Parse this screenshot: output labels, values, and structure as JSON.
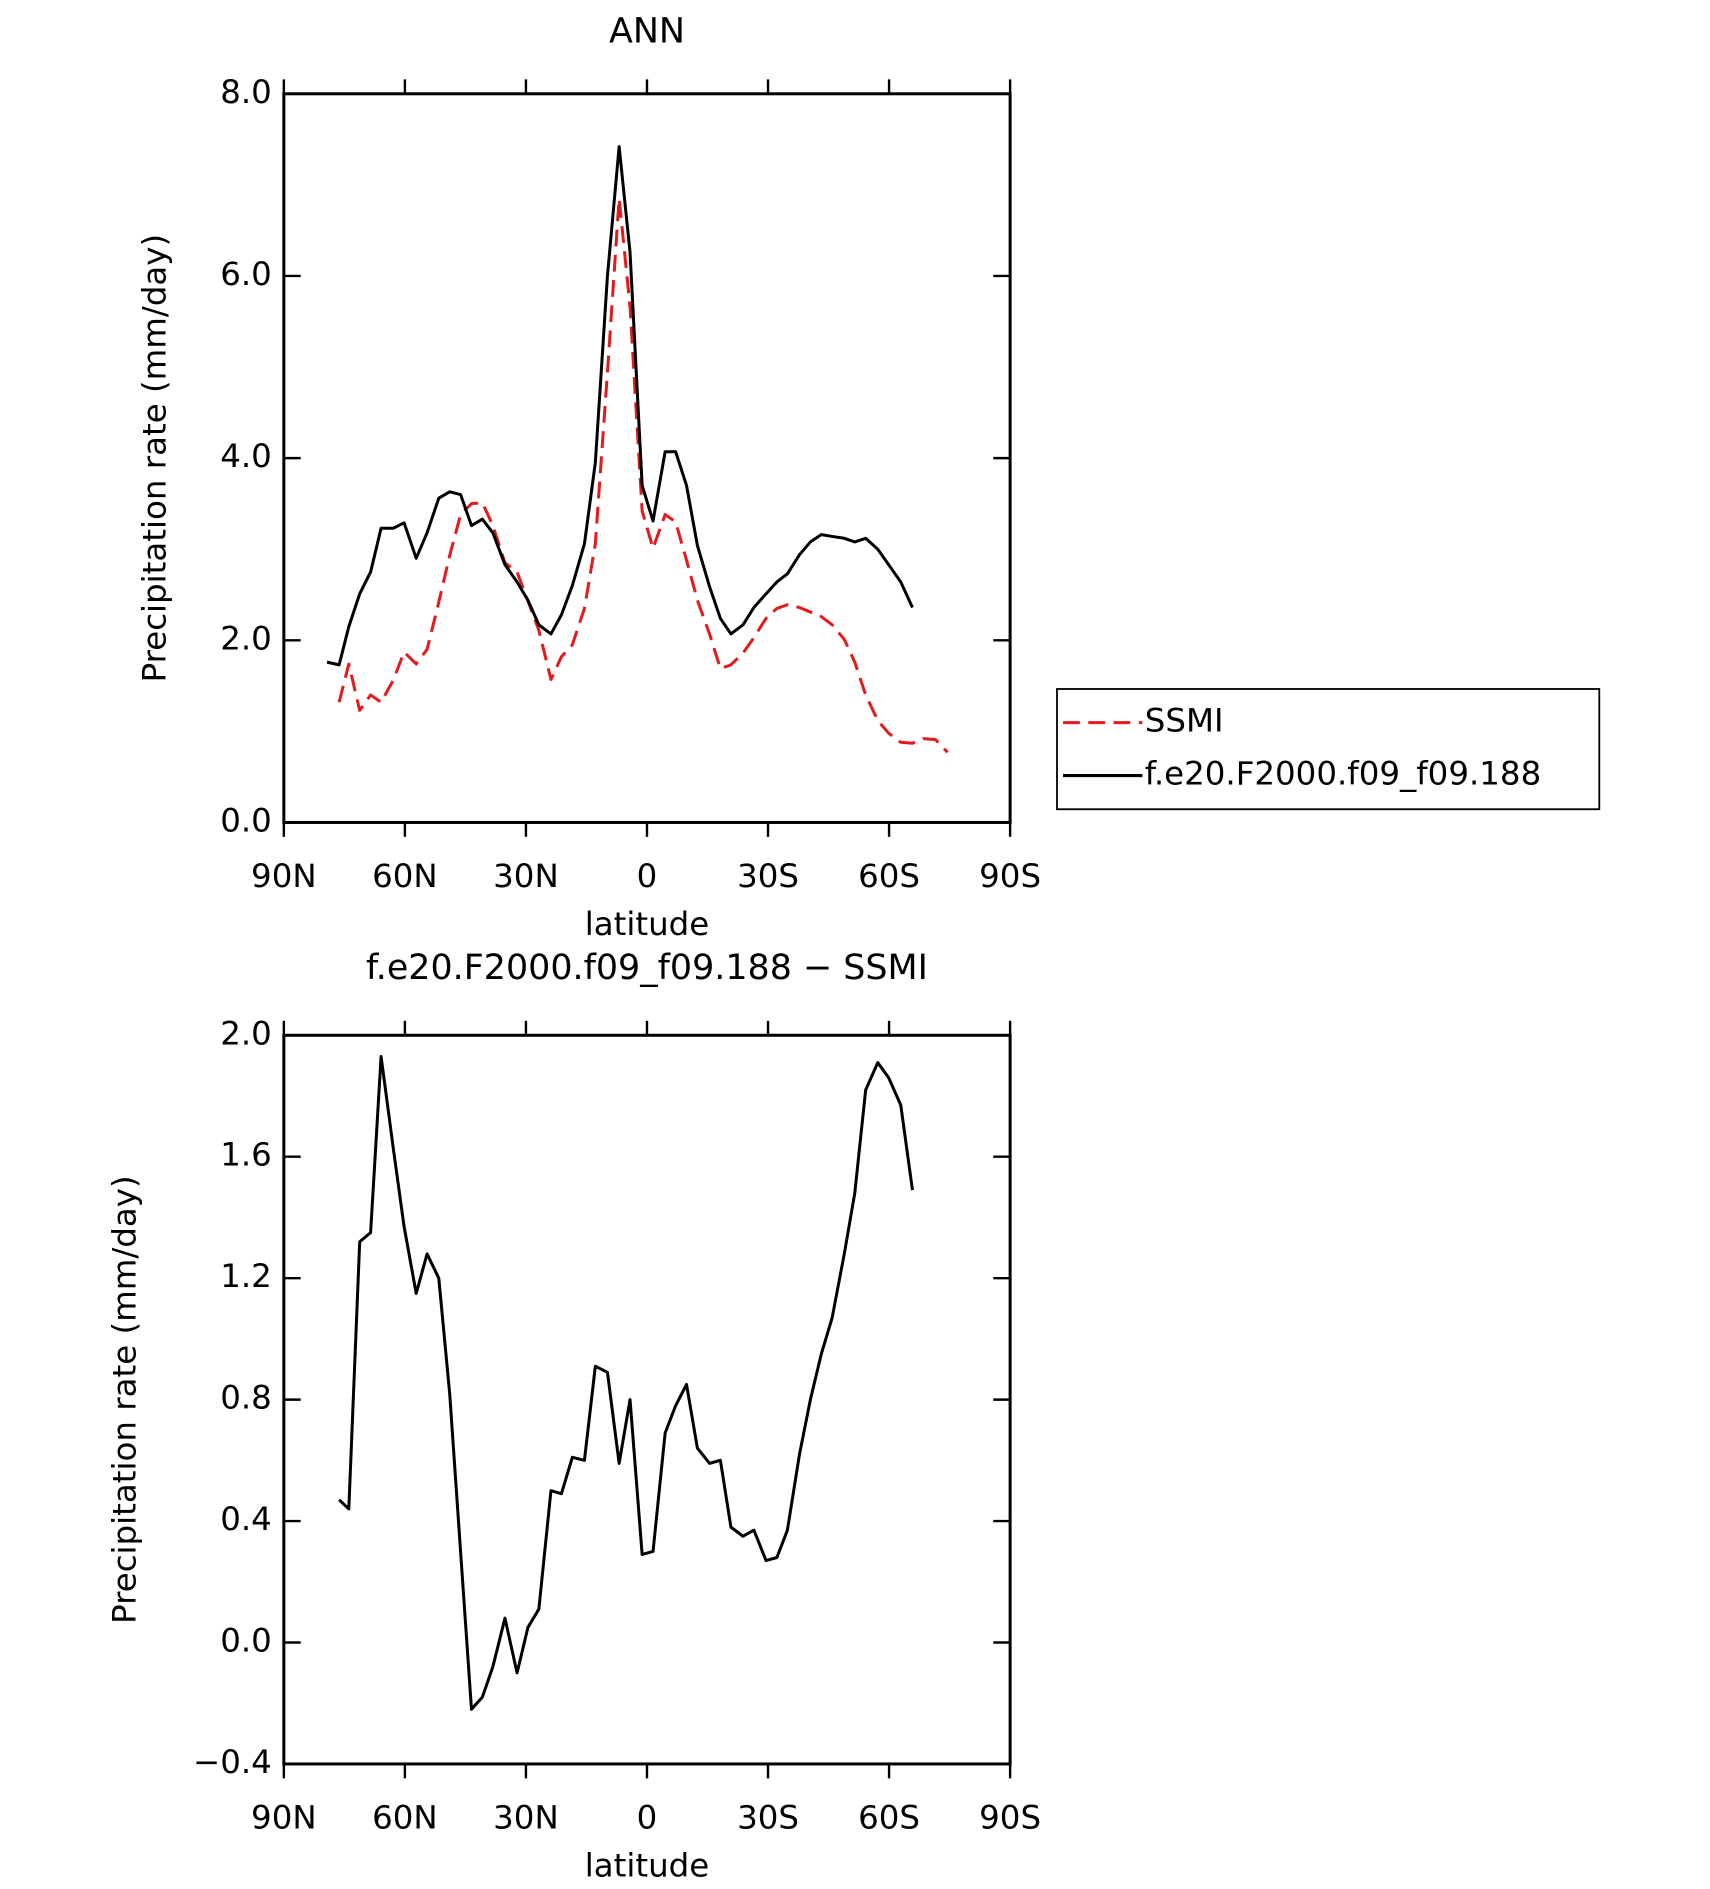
{
  "chart_data": [
    {
      "type": "line",
      "title": "ANN",
      "xlabel": "latitude",
      "ylabel": "Precipitation rate (mm/day)",
      "x": [
        79.3,
        76.3,
        73.9,
        71.2,
        68.5,
        65.9,
        62.9,
        60.2,
        57.2,
        54.5,
        51.6,
        48.9,
        46.2,
        43.5,
        40.8,
        38.2,
        35.2,
        32.2,
        29.5,
        26.8,
        23.8,
        21.2,
        18.5,
        15.5,
        12.8,
        9.8,
        6.9,
        4.2,
        1.2,
        -1.5,
        -4.5,
        -7.1,
        -9.8,
        -12.5,
        -15.5,
        -18.2,
        -20.8,
        -23.8,
        -26.5,
        -29.5,
        -32.2,
        -34.8,
        -37.8,
        -40.5,
        -43.2,
        -45.9,
        -48.9,
        -51.5,
        -54.2,
        -57.2,
        -59.9,
        -62.9,
        -65.8,
        -68.5,
        -71.5,
        -74.5
      ],
      "series": [
        {
          "name": "SSMI",
          "color": "#e41a1c",
          "dashed": true,
          "values": [
            null,
            1.32,
            1.74,
            1.23,
            1.4,
            1.32,
            1.56,
            1.87,
            1.74,
            1.9,
            2.42,
            2.93,
            3.38,
            3.5,
            3.51,
            3.26,
            2.85,
            2.75,
            2.43,
            2.11,
            1.57,
            1.82,
            1.95,
            2.35,
            3.06,
            4.94,
            6.85,
            5.66,
            3.42,
            3.01,
            3.38,
            3.3,
            2.88,
            2.44,
            2.07,
            1.69,
            1.73,
            1.86,
            2.03,
            2.24,
            2.35,
            2.39,
            2.36,
            2.31,
            2.26,
            2.17,
            2.01,
            1.76,
            1.4,
            1.12,
            0.98,
            0.88,
            0.87,
            0.92,
            0.91,
            0.77
          ]
        },
        {
          "name": "f.e20.F2000.f09_f09.188",
          "color": "#000000",
          "dashed": false,
          "values": [
            1.76,
            1.73,
            2.15,
            2.51,
            2.75,
            3.23,
            3.23,
            3.29,
            2.9,
            3.18,
            3.56,
            3.63,
            3.6,
            3.26,
            3.33,
            3.18,
            2.83,
            2.64,
            2.44,
            2.17,
            2.07,
            2.28,
            2.6,
            3.06,
            3.95,
            6.0,
            7.42,
            6.26,
            3.7,
            3.31,
            4.07,
            4.07,
            3.7,
            3.04,
            2.59,
            2.24,
            2.07,
            2.17,
            2.36,
            2.51,
            2.64,
            2.73,
            2.94,
            3.08,
            3.16,
            3.14,
            3.12,
            3.08,
            3.12,
            3.0,
            2.83,
            2.64,
            2.36,
            null,
            null,
            null
          ]
        }
      ],
      "xlim": [
        90,
        -90
      ],
      "xticks": [
        {
          "value": 90,
          "label": "90N"
        },
        {
          "value": 60,
          "label": "60N"
        },
        {
          "value": 30,
          "label": "30N"
        },
        0,
        {
          "value": -30,
          "label": "30S"
        },
        {
          "value": -60,
          "label": "60S"
        },
        {
          "value": -90,
          "label": "90S"
        }
      ],
      "ylim": [
        0,
        8
      ],
      "yticks": [
        {
          "value": 0,
          "label": "0.0"
        },
        {
          "value": 2,
          "label": "2.0"
        },
        {
          "value": 4,
          "label": "4.0"
        },
        {
          "value": 6,
          "label": "6.0"
        },
        {
          "value": 8,
          "label": "8.0"
        }
      ],
      "legend": "right"
    },
    {
      "type": "line",
      "title": "f.e20.F2000.f09_f09.188 − SSMI",
      "xlabel": "latitude",
      "ylabel": "Precipitation rate (mm/day)",
      "x": [
        76.3,
        73.9,
        71.2,
        68.5,
        65.9,
        62.9,
        60.2,
        57.2,
        54.5,
        51.6,
        48.9,
        46.2,
        43.5,
        40.8,
        38.2,
        35.2,
        32.2,
        29.5,
        26.8,
        23.8,
        21.2,
        18.5,
        15.5,
        12.8,
        9.8,
        6.9,
        4.2,
        1.2,
        -1.5,
        -4.5,
        -7.1,
        -9.8,
        -12.5,
        -15.5,
        -18.2,
        -20.8,
        -23.8,
        -26.5,
        -29.5,
        -32.2,
        -34.8,
        -37.8,
        -40.5,
        -43.2,
        -45.9,
        -48.9,
        -51.5,
        -54.2,
        -57.2,
        -59.9,
        -62.9,
        -65.8
      ],
      "series": [
        {
          "color": "#000000",
          "dashed": false,
          "values": [
            0.47,
            0.44,
            1.32,
            1.35,
            1.93,
            1.63,
            1.37,
            1.15,
            1.28,
            1.2,
            0.82,
            0.3,
            -0.22,
            -0.18,
            -0.08,
            0.08,
            -0.1,
            0.05,
            0.11,
            0.5,
            0.49,
            0.61,
            0.6,
            0.91,
            0.89,
            0.59,
            0.8,
            0.29,
            0.3,
            0.69,
            0.78,
            0.85,
            0.64,
            0.59,
            0.6,
            0.38,
            0.35,
            0.37,
            0.27,
            0.28,
            0.37,
            0.62,
            0.8,
            0.95,
            1.07,
            1.28,
            1.48,
            1.82,
            1.91,
            1.86,
            1.77,
            1.49
          ]
        }
      ],
      "xlim": [
        90,
        -90
      ],
      "xticks": [
        {
          "value": 90,
          "label": "90N"
        },
        {
          "value": 60,
          "label": "60N"
        },
        {
          "value": 30,
          "label": "30N"
        },
        0,
        {
          "value": -30,
          "label": "30S"
        },
        {
          "value": -60,
          "label": "60S"
        },
        {
          "value": -90,
          "label": "90S"
        }
      ],
      "ylim": [
        -0.4,
        2.0
      ],
      "yticks": [
        {
          "value": -0.4,
          "label": "−0.4"
        },
        {
          "value": 0,
          "label": "0.0"
        },
        {
          "value": 0.4,
          "label": "0.4"
        },
        {
          "value": 0.8,
          "label": "0.8"
        },
        {
          "value": 1.2,
          "label": "1.2"
        },
        {
          "value": 1.6,
          "label": "1.6"
        },
        {
          "value": 2.0,
          "label": "2.0"
        }
      ]
    }
  ]
}
